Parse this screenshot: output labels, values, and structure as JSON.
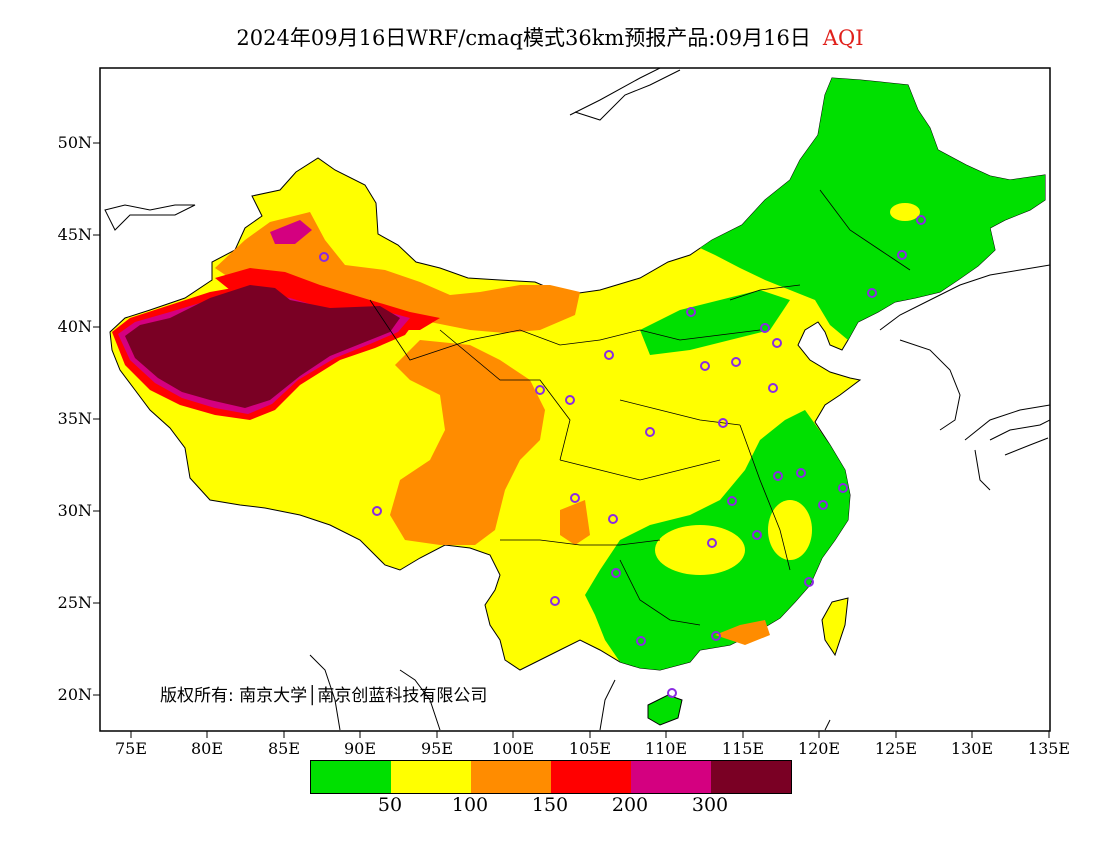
{
  "title": {
    "main": "2024年09月16日WRF/cmaq模式36km预报产品:09月16日",
    "variable": "AQI"
  },
  "axes": {
    "lat_labels": [
      "50N",
      "45N",
      "40N",
      "35N",
      "30N",
      "25N",
      "20N"
    ],
    "lon_labels": [
      "75E",
      "80E",
      "85E",
      "90E",
      "95E",
      "100E",
      "105E",
      "110E",
      "115E",
      "120E",
      "125E",
      "130E",
      "135E"
    ]
  },
  "copyright": "版权所有: 南京大学│南京创蓝科技有限公司",
  "legend": {
    "colors": [
      "#00e000",
      "#ffff00",
      "#ff8c00",
      "#ff0000",
      "#d40080",
      "#7a0024"
    ],
    "labels": [
      "50",
      "100",
      "150",
      "200",
      "300"
    ]
  },
  "colors": {
    "good": "#00e000",
    "moderate": "#ffff00",
    "unhealthy_sensitive": "#ff8c00",
    "unhealthy": "#ff0000",
    "very_unhealthy": "#d40080",
    "hazardous": "#7a0024",
    "station_marker": "#8a2be2"
  }
}
